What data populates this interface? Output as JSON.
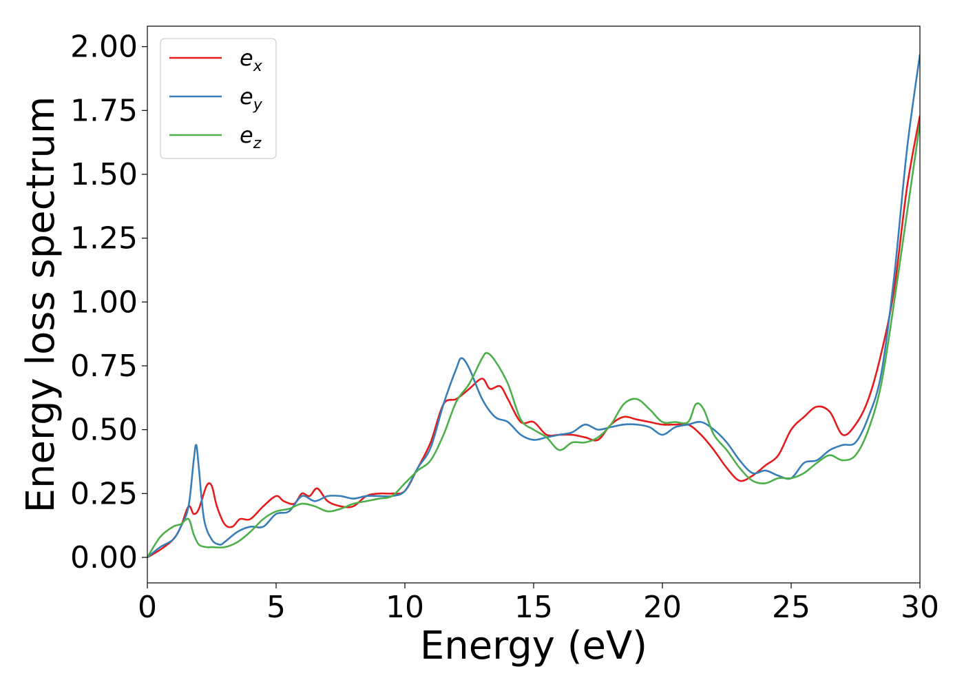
{
  "chart_data": {
    "type": "line",
    "xlabel": "Energy (eV)",
    "ylabel": "Energy loss spectrum",
    "xlim": [
      0,
      30
    ],
    "ylim": [
      -0.1,
      2.08
    ],
    "xticks": [
      0,
      5,
      10,
      15,
      20,
      25,
      30
    ],
    "xtick_labels": [
      "0",
      "5",
      "10",
      "15",
      "20",
      "25",
      "30"
    ],
    "yticks": [
      0.0,
      0.25,
      0.5,
      0.75,
      1.0,
      1.25,
      1.5,
      1.75,
      2.0
    ],
    "ytick_labels": [
      "0.00",
      "0.25",
      "0.50",
      "0.75",
      "1.00",
      "1.25",
      "1.50",
      "1.75",
      "2.00"
    ],
    "grid": false,
    "legend_position": "top-left",
    "series": [
      {
        "name": "e",
        "subscript": "x",
        "color": "#e41a1c",
        "x": [
          0,
          0.5,
          1,
          1.3,
          1.6,
          1.8,
          2,
          2.3,
          2.5,
          2.7,
          3,
          3.3,
          3.6,
          4,
          4.5,
          5,
          5.3,
          5.7,
          6,
          6.3,
          6.6,
          7,
          7.5,
          8,
          8.5,
          9,
          9.5,
          10,
          10.5,
          11,
          11.5,
          12,
          12.5,
          13,
          13.3,
          13.7,
          14,
          14.5,
          15,
          15.5,
          16,
          16.5,
          17,
          17.5,
          18,
          18.5,
          19,
          19.5,
          20,
          20.5,
          21,
          21.5,
          22,
          22.5,
          23,
          23.5,
          24,
          24.5,
          25,
          25.5,
          26,
          26.5,
          27,
          27.5,
          28,
          28.5,
          29,
          29.5,
          30
        ],
        "y": [
          0,
          0.03,
          0.07,
          0.12,
          0.2,
          0.17,
          0.19,
          0.28,
          0.28,
          0.2,
          0.13,
          0.12,
          0.15,
          0.15,
          0.2,
          0.24,
          0.22,
          0.21,
          0.25,
          0.24,
          0.27,
          0.22,
          0.2,
          0.2,
          0.24,
          0.25,
          0.25,
          0.26,
          0.35,
          0.45,
          0.6,
          0.62,
          0.66,
          0.7,
          0.66,
          0.67,
          0.62,
          0.53,
          0.53,
          0.48,
          0.48,
          0.48,
          0.47,
          0.46,
          0.52,
          0.55,
          0.54,
          0.53,
          0.52,
          0.52,
          0.52,
          0.48,
          0.42,
          0.35,
          0.3,
          0.32,
          0.36,
          0.4,
          0.5,
          0.55,
          0.59,
          0.57,
          0.48,
          0.52,
          0.62,
          0.8,
          1.05,
          1.45,
          1.73
        ]
      },
      {
        "name": "e",
        "subscript": "y",
        "color": "#377eb8",
        "x": [
          0,
          0.5,
          1,
          1.3,
          1.6,
          1.8,
          1.9,
          2,
          2.2,
          2.5,
          2.8,
          3,
          3.5,
          4,
          4.5,
          5,
          5.5,
          6,
          6.5,
          7,
          7.5,
          8,
          8.5,
          9,
          9.5,
          10,
          10.5,
          11,
          11.5,
          12,
          12.2,
          12.5,
          13,
          13.5,
          14,
          14.5,
          15,
          15.5,
          16,
          16.5,
          17,
          17.5,
          18,
          18.5,
          19,
          19.5,
          20,
          20.5,
          21,
          21.5,
          22,
          22.5,
          23,
          23.5,
          24,
          24.5,
          25,
          25.5,
          26,
          26.5,
          27,
          27.5,
          28,
          28.5,
          29,
          29.5,
          30
        ],
        "y": [
          0,
          0.04,
          0.07,
          0.12,
          0.2,
          0.38,
          0.44,
          0.35,
          0.15,
          0.07,
          0.05,
          0.06,
          0.1,
          0.12,
          0.12,
          0.17,
          0.18,
          0.24,
          0.22,
          0.24,
          0.24,
          0.23,
          0.24,
          0.24,
          0.24,
          0.26,
          0.35,
          0.43,
          0.6,
          0.74,
          0.78,
          0.74,
          0.62,
          0.55,
          0.53,
          0.48,
          0.46,
          0.47,
          0.48,
          0.49,
          0.52,
          0.5,
          0.51,
          0.52,
          0.52,
          0.51,
          0.48,
          0.51,
          0.52,
          0.53,
          0.5,
          0.45,
          0.38,
          0.33,
          0.34,
          0.32,
          0.31,
          0.37,
          0.38,
          0.42,
          0.44,
          0.45,
          0.55,
          0.72,
          1.1,
          1.6,
          1.97
        ]
      },
      {
        "name": "e",
        "subscript": "z",
        "color": "#4daf4a",
        "x": [
          0,
          0.5,
          1,
          1.3,
          1.6,
          1.8,
          2,
          2.3,
          2.5,
          3,
          3.5,
          4,
          4.5,
          5,
          5.5,
          6,
          6.5,
          7,
          7.5,
          8,
          8.5,
          9,
          9.5,
          10,
          10.5,
          11,
          11.5,
          12,
          12.5,
          13,
          13.2,
          13.5,
          14,
          14.5,
          15,
          15.5,
          16,
          16.5,
          17,
          17.5,
          18,
          18.5,
          19,
          19.5,
          20,
          20.5,
          21,
          21.3,
          21.6,
          22,
          22.5,
          23,
          23.5,
          24,
          24.5,
          25,
          25.5,
          26,
          26.5,
          27,
          27.5,
          28,
          28.5,
          29,
          29.5,
          30
        ],
        "y": [
          0,
          0.08,
          0.12,
          0.13,
          0.15,
          0.09,
          0.05,
          0.04,
          0.04,
          0.04,
          0.06,
          0.1,
          0.15,
          0.18,
          0.19,
          0.21,
          0.2,
          0.18,
          0.19,
          0.21,
          0.22,
          0.23,
          0.24,
          0.29,
          0.34,
          0.38,
          0.48,
          0.61,
          0.68,
          0.78,
          0.8,
          0.77,
          0.68,
          0.54,
          0.5,
          0.47,
          0.42,
          0.45,
          0.45,
          0.47,
          0.52,
          0.6,
          0.62,
          0.58,
          0.53,
          0.53,
          0.53,
          0.6,
          0.58,
          0.48,
          0.42,
          0.35,
          0.3,
          0.29,
          0.31,
          0.31,
          0.33,
          0.37,
          0.4,
          0.38,
          0.4,
          0.5,
          0.68,
          1.0,
          1.35,
          1.7
        ]
      }
    ]
  }
}
